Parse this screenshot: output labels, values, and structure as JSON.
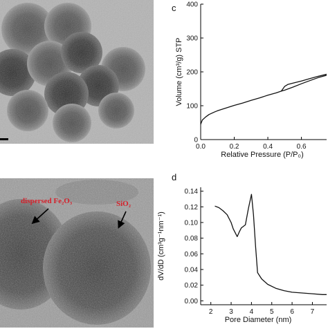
{
  "panels": {
    "a": {
      "scale_bar": ""
    },
    "b": {
      "annotations": [
        {
          "id": "fe2o3",
          "text": "dispersed Fe₂O₃"
        },
        {
          "id": "sio2",
          "text": "SiO₂"
        }
      ]
    }
  },
  "colors": {
    "line": "#111111",
    "annotation_text": "#d4202a",
    "tem_background": "#b4b4b4"
  },
  "chart_data": [
    {
      "panel_label": "c",
      "type": "line",
      "xlabel": "Relative Pressure (P/P₀)",
      "ylabel": "Volume (cm³/g) STP",
      "xlim": [
        0,
        0.75
      ],
      "ylim": [
        0,
        400
      ],
      "xticks": [
        0.0,
        0.2,
        0.4,
        0.6
      ],
      "xtick_labels": [
        "0.0",
        "0.2",
        "0.4",
        "0.6"
      ],
      "yticks": [
        0,
        100,
        200,
        300,
        400
      ],
      "ytick_labels": [
        "0",
        "100",
        "200",
        "300",
        "400"
      ],
      "series": [
        {
          "x": [
            0.0,
            0.01,
            0.03,
            0.05,
            0.08,
            0.1,
            0.15,
            0.2,
            0.25,
            0.3,
            0.35,
            0.4,
            0.45,
            0.48,
            0.5,
            0.55,
            0.6,
            0.65,
            0.7,
            0.75
          ],
          "y": [
            45,
            58,
            67,
            74,
            81,
            85,
            93,
            101,
            108,
            116,
            123,
            131,
            138,
            143,
            146,
            155,
            165,
            174,
            183,
            190
          ]
        },
        {
          "x": [
            0.75,
            0.7,
            0.65,
            0.6,
            0.55,
            0.52,
            0.5,
            0.48
          ],
          "y": [
            193,
            187,
            180,
            173,
            167,
            163,
            157,
            143
          ]
        }
      ]
    },
    {
      "panel_label": "d",
      "type": "line",
      "xlabel": "Pore Diameter (nm)",
      "ylabel": "dV/dD (cm³g⁻¹nm⁻¹)",
      "xlim": [
        1.5,
        7.7
      ],
      "ylim": [
        -0.005,
        0.145
      ],
      "xticks": [
        2,
        3,
        4,
        5,
        6,
        7
      ],
      "xtick_labels": [
        "2",
        "3",
        "4",
        "5",
        "6",
        "7"
      ],
      "yticks": [
        0.0,
        0.02,
        0.04,
        0.06,
        0.08,
        0.1,
        0.12,
        0.14
      ],
      "ytick_labels": [
        "0.00",
        "0.02",
        "0.04",
        "0.06",
        "0.08",
        "0.10",
        "0.12",
        "0.14"
      ],
      "series": [
        {
          "x": [
            2.2,
            2.4,
            2.6,
            2.8,
            3.0,
            3.1,
            3.3,
            3.4,
            3.5,
            3.7,
            3.85,
            4.0,
            4.1,
            4.2,
            4.3,
            4.5,
            4.8,
            5.2,
            5.6,
            6.0,
            6.5,
            7.0,
            7.5,
            7.7
          ],
          "y": [
            0.121,
            0.119,
            0.115,
            0.11,
            0.1,
            0.092,
            0.082,
            0.088,
            0.093,
            0.097,
            0.118,
            0.136,
            0.11,
            0.07,
            0.036,
            0.028,
            0.021,
            0.016,
            0.013,
            0.011,
            0.01,
            0.009,
            0.008,
            0.008
          ]
        }
      ]
    }
  ]
}
